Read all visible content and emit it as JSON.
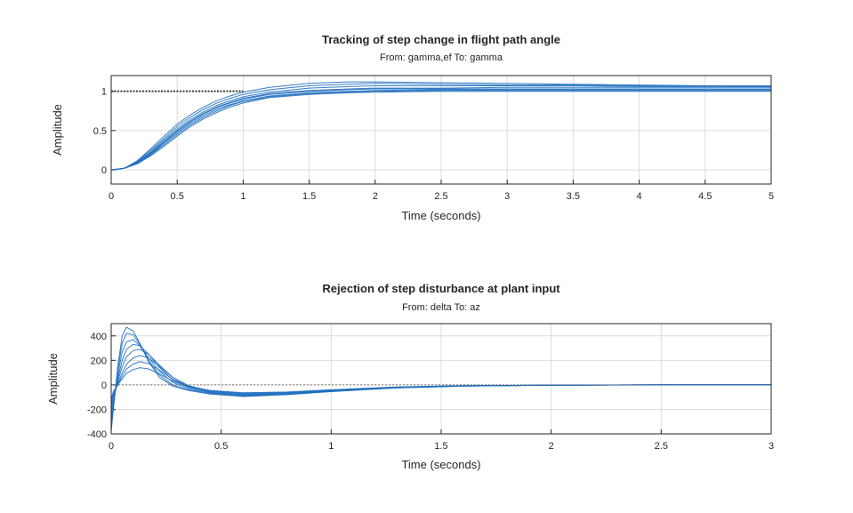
{
  "chart_data": [
    {
      "type": "line",
      "title": "Tracking of step change in flight path angle",
      "subtitle": "From:  gamma,ef    To:  gamma",
      "xlabel": "Time (seconds)",
      "ylabel": "Amplitude",
      "xlim": [
        0,
        5
      ],
      "ylim": [
        -0.18,
        1.2
      ],
      "xticks": [
        0,
        0.5,
        1,
        1.5,
        2,
        2.5,
        3,
        3.5,
        4,
        4.5,
        5
      ],
      "yticks": [
        0,
        0.5,
        1
      ],
      "xtick_labels": [
        "0",
        "0.5",
        "1",
        "1.5",
        "2",
        "2.5",
        "3",
        "3.5",
        "4",
        "4.5",
        "5"
      ],
      "ytick_labels": [
        "0",
        "0.5",
        "1"
      ],
      "grid": true,
      "reference": {
        "style": "dotted",
        "y": 1,
        "x": [
          0,
          1
        ]
      },
      "series_color": "#1f6fc0",
      "series": [
        {
          "x": [
            0,
            0.1,
            0.2,
            0.3,
            0.4,
            0.5,
            0.6,
            0.7,
            0.8,
            0.9,
            1.0,
            1.2,
            1.5,
            1.8,
            2.0,
            2.5,
            3.0,
            3.5,
            4.0,
            4.5,
            5.0
          ],
          "values": [
            0,
            0.02,
            0.12,
            0.27,
            0.43,
            0.58,
            0.7,
            0.8,
            0.88,
            0.94,
            0.99,
            1.05,
            1.1,
            1.12,
            1.12,
            1.11,
            1.1,
            1.09,
            1.08,
            1.07,
            1.07
          ]
        },
        {
          "x": [
            0,
            0.1,
            0.2,
            0.3,
            0.4,
            0.5,
            0.6,
            0.7,
            0.8,
            0.9,
            1.0,
            1.2,
            1.5,
            1.8,
            2.0,
            2.5,
            3.0,
            3.5,
            4.0,
            4.5,
            5.0
          ],
          "values": [
            0,
            0.02,
            0.11,
            0.25,
            0.4,
            0.55,
            0.67,
            0.77,
            0.85,
            0.91,
            0.96,
            1.02,
            1.07,
            1.09,
            1.1,
            1.09,
            1.08,
            1.08,
            1.07,
            1.07,
            1.06
          ]
        },
        {
          "x": [
            0,
            0.1,
            0.2,
            0.3,
            0.4,
            0.5,
            0.6,
            0.7,
            0.8,
            0.9,
            1.0,
            1.2,
            1.5,
            1.8,
            2.0,
            2.5,
            3.0,
            3.5,
            4.0,
            4.5,
            5.0
          ],
          "values": [
            0,
            0.02,
            0.1,
            0.23,
            0.38,
            0.52,
            0.64,
            0.74,
            0.82,
            0.88,
            0.93,
            0.99,
            1.04,
            1.06,
            1.07,
            1.07,
            1.07,
            1.07,
            1.06,
            1.06,
            1.06
          ]
        },
        {
          "x": [
            0,
            0.1,
            0.2,
            0.3,
            0.4,
            0.5,
            0.6,
            0.7,
            0.8,
            0.9,
            1.0,
            1.2,
            1.5,
            1.8,
            2.0,
            2.5,
            3.0,
            3.5,
            4.0,
            4.5,
            5.0
          ],
          "values": [
            0,
            0.02,
            0.1,
            0.22,
            0.36,
            0.5,
            0.62,
            0.72,
            0.8,
            0.86,
            0.91,
            0.97,
            1.01,
            1.03,
            1.04,
            1.04,
            1.05,
            1.05,
            1.05,
            1.05,
            1.05
          ]
        },
        {
          "x": [
            0,
            0.1,
            0.2,
            0.3,
            0.4,
            0.5,
            0.6,
            0.7,
            0.8,
            0.9,
            1.0,
            1.2,
            1.5,
            1.8,
            2.0,
            2.5,
            3.0,
            3.5,
            4.0,
            4.5,
            5.0
          ],
          "values": [
            0,
            0.02,
            0.09,
            0.21,
            0.35,
            0.49,
            0.61,
            0.71,
            0.79,
            0.85,
            0.9,
            0.96,
            1.0,
            1.02,
            1.03,
            1.03,
            1.03,
            1.03,
            1.03,
            1.03,
            1.03
          ]
        },
        {
          "x": [
            0,
            0.1,
            0.2,
            0.3,
            0.4,
            0.5,
            0.6,
            0.7,
            0.8,
            0.9,
            1.0,
            1.2,
            1.5,
            1.8,
            2.0,
            2.5,
            3.0,
            3.5,
            4.0,
            4.5,
            5.0
          ],
          "values": [
            0,
            0.02,
            0.09,
            0.2,
            0.34,
            0.47,
            0.59,
            0.69,
            0.77,
            0.83,
            0.88,
            0.94,
            0.98,
            1.0,
            1.01,
            1.02,
            1.02,
            1.02,
            1.02,
            1.02,
            1.02
          ]
        },
        {
          "x": [
            0,
            0.1,
            0.2,
            0.3,
            0.4,
            0.5,
            0.6,
            0.7,
            0.8,
            0.9,
            1.0,
            1.2,
            1.5,
            1.8,
            2.0,
            2.5,
            3.0,
            3.5,
            4.0,
            4.5,
            5.0
          ],
          "values": [
            0,
            0.02,
            0.08,
            0.19,
            0.32,
            0.45,
            0.57,
            0.67,
            0.75,
            0.82,
            0.87,
            0.93,
            0.97,
            0.99,
            1.0,
            1.01,
            1.01,
            1.01,
            1.01,
            1.01,
            1.01
          ]
        },
        {
          "x": [
            0,
            0.1,
            0.2,
            0.3,
            0.4,
            0.5,
            0.6,
            0.7,
            0.8,
            0.9,
            1.0,
            1.2,
            1.5,
            1.8,
            2.0,
            2.5,
            3.0,
            3.5,
            4.0,
            4.5,
            5.0
          ],
          "values": [
            0,
            0.02,
            0.08,
            0.18,
            0.3,
            0.43,
            0.55,
            0.65,
            0.73,
            0.8,
            0.85,
            0.92,
            0.96,
            0.98,
            0.99,
            1.0,
            1.0,
            1.0,
            1.0,
            1.0,
            1.0
          ]
        }
      ]
    },
    {
      "type": "line",
      "title": "Rejection of step disturbance at plant input",
      "subtitle": "From: delta  To: az",
      "xlabel": "Time (seconds)",
      "ylabel": "Amplitude",
      "xlim": [
        0,
        3
      ],
      "ylim": [
        -400,
        500
      ],
      "xticks": [
        0,
        0.5,
        1,
        1.5,
        2,
        2.5,
        3
      ],
      "yticks": [
        -400,
        -200,
        0,
        200,
        400
      ],
      "xtick_labels": [
        "0",
        "0.5",
        "1",
        "1.5",
        "2",
        "2.5",
        "3"
      ],
      "ytick_labels": [
        "-400",
        "-200",
        "0",
        "200",
        "400"
      ],
      "grid": true,
      "reference": {
        "style": "dotted",
        "y": 0,
        "x": [
          0,
          3
        ]
      },
      "series_color": "#1f6fc0",
      "series": [
        {
          "x": [
            0,
            0.01,
            0.03,
            0.05,
            0.07,
            0.1,
            0.13,
            0.17,
            0.22,
            0.28,
            0.35,
            0.45,
            0.6,
            0.8,
            1.0,
            1.3,
            1.6,
            2.0,
            2.5,
            3.0
          ],
          "values": [
            -380,
            -200,
            150,
            400,
            470,
            440,
            340,
            190,
            60,
            -10,
            -45,
            -75,
            -95,
            -80,
            -55,
            -25,
            -10,
            -3,
            0,
            0
          ]
        },
        {
          "x": [
            0,
            0.01,
            0.03,
            0.05,
            0.07,
            0.1,
            0.13,
            0.17,
            0.22,
            0.28,
            0.35,
            0.45,
            0.6,
            0.8,
            1.0,
            1.3,
            1.6,
            2.0,
            2.5,
            3.0
          ],
          "values": [
            -340,
            -180,
            120,
            340,
            420,
            410,
            330,
            200,
            80,
            0,
            -40,
            -70,
            -90,
            -78,
            -52,
            -24,
            -10,
            -3,
            0,
            0
          ]
        },
        {
          "x": [
            0,
            0.01,
            0.03,
            0.05,
            0.07,
            0.1,
            0.13,
            0.17,
            0.22,
            0.28,
            0.35,
            0.45,
            0.6,
            0.8,
            1.0,
            1.3,
            1.6,
            2.0,
            2.5,
            3.0
          ],
          "values": [
            -300,
            -160,
            80,
            270,
            350,
            370,
            320,
            220,
            110,
            20,
            -30,
            -65,
            -88,
            -75,
            -50,
            -22,
            -9,
            -2,
            0,
            0
          ]
        },
        {
          "x": [
            0,
            0.01,
            0.03,
            0.05,
            0.07,
            0.1,
            0.13,
            0.17,
            0.22,
            0.28,
            0.35,
            0.45,
            0.6,
            0.8,
            1.0,
            1.3,
            1.6,
            2.0,
            2.5,
            3.0
          ],
          "values": [
            -260,
            -140,
            50,
            200,
            290,
            330,
            320,
            250,
            140,
            40,
            -20,
            -60,
            -85,
            -72,
            -48,
            -21,
            -8,
            -2,
            0,
            0
          ]
        },
        {
          "x": [
            0,
            0.01,
            0.03,
            0.05,
            0.07,
            0.1,
            0.13,
            0.17,
            0.22,
            0.28,
            0.35,
            0.45,
            0.6,
            0.8,
            1.0,
            1.3,
            1.6,
            2.0,
            2.5,
            3.0
          ],
          "values": [
            -220,
            -110,
            30,
            150,
            230,
            280,
            290,
            250,
            160,
            60,
            -10,
            -55,
            -80,
            -70,
            -46,
            -20,
            -8,
            -2,
            0,
            0
          ]
        },
        {
          "x": [
            0,
            0.01,
            0.03,
            0.05,
            0.07,
            0.1,
            0.13,
            0.17,
            0.22,
            0.28,
            0.35,
            0.45,
            0.6,
            0.8,
            1.0,
            1.3,
            1.6,
            2.0,
            2.5,
            3.0
          ],
          "values": [
            -180,
            -90,
            10,
            100,
            170,
            220,
            240,
            220,
            150,
            60,
            -5,
            -50,
            -75,
            -66,
            -44,
            -19,
            -7,
            -2,
            0,
            0
          ]
        },
        {
          "x": [
            0,
            0.01,
            0.03,
            0.05,
            0.07,
            0.1,
            0.13,
            0.17,
            0.22,
            0.28,
            0.35,
            0.45,
            0.6,
            0.8,
            1.0,
            1.3,
            1.6,
            2.0,
            2.5,
            3.0
          ],
          "values": [
            -150,
            -70,
            0,
            70,
            130,
            170,
            190,
            175,
            120,
            45,
            -10,
            -48,
            -70,
            -62,
            -42,
            -18,
            -7,
            -2,
            0,
            0
          ]
        },
        {
          "x": [
            0,
            0.01,
            0.03,
            0.05,
            0.07,
            0.1,
            0.13,
            0.17,
            0.22,
            0.28,
            0.35,
            0.45,
            0.6,
            0.8,
            1.0,
            1.3,
            1.6,
            2.0,
            2.5,
            3.0
          ],
          "values": [
            -120,
            -50,
            0,
            50,
            95,
            125,
            140,
            130,
            90,
            30,
            -15,
            -45,
            -65,
            -58,
            -40,
            -17,
            -6,
            -2,
            0,
            0
          ]
        }
      ]
    }
  ]
}
